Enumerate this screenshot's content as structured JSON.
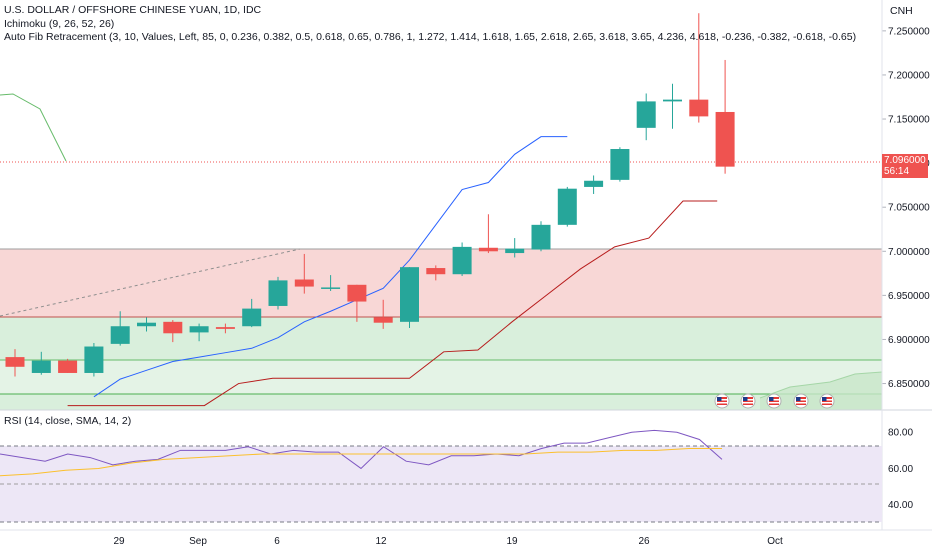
{
  "legend": {
    "symbol": "U.S. DOLLAR / OFFSHORE CHINESE YUAN, 1D, IDC",
    "ichimoku": "Ichimoku (9, 26, 52, 26)",
    "fib": "Auto Fib Retracement (3, 10, Values, Left, 85, 0, 0.236, 0.382, 0.5, 0.618, 0.65, 0.786, 1, 1.272, 1.414, 1.618, 1.65, 2.618, 2.65, 3.618, 3.65, 4.236, 4.618, -0.236, -0.382, -0.618, -0.65)",
    "rsi": "RSI (14, close, SMA, 14, 2)"
  },
  "currency": "CNH",
  "last_price": {
    "value": "7.096000",
    "countdown": "56:14"
  },
  "colors": {
    "up": "#26a69a",
    "down": "#ef5350",
    "tenkan": "#2962ff",
    "kijun": "#b71c1c",
    "rsi": "#7e57c2",
    "rsi_ma": "#fbc02d",
    "rsi_bg": "#ede7f6",
    "fib_red": "#f8d7d6",
    "fib_green": "#d9efdc",
    "cloud": "#a5d6a7"
  },
  "price_axis": [
    "7.250000",
    "7.200000",
    "7.150000",
    "7.100000",
    "7.050000",
    "7.000000",
    "6.950000",
    "6.900000",
    "6.850000"
  ],
  "rsi_axis": [
    "80.00",
    "60.00",
    "40.00"
  ],
  "time_axis": [
    "29",
    "Sep",
    "6",
    "12",
    "19",
    "26",
    "Oct"
  ],
  "event_icons": [
    "us-flag-icon",
    "us-flag-icon",
    "us-flag-icon",
    "us-flag-icon",
    "us-flag-icon"
  ],
  "chart_data": {
    "type": "candlestick",
    "candles": [
      {
        "o": 6.88,
        "h": 6.889,
        "l": 6.858,
        "c": 6.869
      },
      {
        "o": 6.862,
        "h": 6.886,
        "l": 6.86,
        "c": 6.876
      },
      {
        "o": 6.876,
        "h": 6.878,
        "l": 6.862,
        "c": 6.862
      },
      {
        "o": 6.862,
        "h": 6.896,
        "l": 6.858,
        "c": 6.892
      },
      {
        "o": 6.895,
        "h": 6.932,
        "l": 6.893,
        "c": 6.915
      },
      {
        "o": 6.915,
        "h": 6.925,
        "l": 6.909,
        "c": 6.919
      },
      {
        "o": 6.92,
        "h": 6.922,
        "l": 6.897,
        "c": 6.907
      },
      {
        "o": 6.908,
        "h": 6.918,
        "l": 6.898,
        "c": 6.915
      },
      {
        "o": 6.914,
        "h": 6.918,
        "l": 6.907,
        "c": 6.912
      },
      {
        "o": 6.915,
        "h": 6.946,
        "l": 6.914,
        "c": 6.935
      },
      {
        "o": 6.938,
        "h": 6.971,
        "l": 6.934,
        "c": 6.967
      },
      {
        "o": 6.968,
        "h": 6.997,
        "l": 6.952,
        "c": 6.96
      },
      {
        "o": 6.958,
        "h": 6.973,
        "l": 6.955,
        "c": 6.959
      },
      {
        "o": 6.962,
        "h": 6.962,
        "l": 6.92,
        "c": 6.943
      },
      {
        "o": 6.925,
        "h": 6.945,
        "l": 6.912,
        "c": 6.919
      },
      {
        "o": 6.92,
        "h": 6.982,
        "l": 6.913,
        "c": 6.982
      },
      {
        "o": 6.981,
        "h": 6.984,
        "l": 6.967,
        "c": 6.974
      },
      {
        "o": 6.974,
        "h": 7.01,
        "l": 6.972,
        "c": 7.005
      },
      {
        "o": 7.004,
        "h": 7.042,
        "l": 6.998,
        "c": 7.0
      },
      {
        "o": 6.998,
        "h": 7.015,
        "l": 6.993,
        "c": 7.003
      },
      {
        "o": 7.002,
        "h": 7.034,
        "l": 7.0,
        "c": 7.03
      },
      {
        "o": 7.03,
        "h": 7.073,
        "l": 7.028,
        "c": 7.071
      },
      {
        "o": 7.073,
        "h": 7.086,
        "l": 7.065,
        "c": 7.08
      },
      {
        "o": 7.081,
        "h": 7.118,
        "l": 7.079,
        "c": 7.116
      },
      {
        "o": 7.14,
        "h": 7.179,
        "l": 7.126,
        "c": 7.17
      },
      {
        "o": 7.17,
        "h": 7.19,
        "l": 7.139,
        "c": 7.172
      },
      {
        "o": 7.172,
        "h": 7.27,
        "l": 7.146,
        "c": 7.153
      },
      {
        "o": 7.158,
        "h": 7.217,
        "l": 7.088,
        "c": 7.096
      }
    ],
    "tenkan": [
      6.835,
      6.855,
      6.865,
      6.875,
      6.88,
      6.885,
      6.89,
      6.902,
      6.92,
      6.932,
      6.945,
      6.958,
      6.99,
      7.03,
      7.07,
      7.078,
      7.11,
      7.13,
      7.13
    ],
    "kijun": [
      6.825,
      6.825,
      6.825,
      6.825,
      6.825,
      6.85,
      6.856,
      6.856,
      6.856,
      6.856,
      6.856,
      6.886,
      6.888,
      6.92,
      6.95,
      6.98,
      7.005,
      7.015,
      7.057,
      7.057
    ],
    "chikou": [
      7.172,
      7.153,
      7.096
    ],
    "fib_levels": [
      6.999,
      6.921,
      6.872,
      6.834
    ],
    "rsi": [
      68,
      66,
      64,
      68,
      66,
      62,
      64,
      65,
      70,
      70,
      70,
      72,
      68,
      70,
      69,
      69,
      60,
      72,
      64,
      62,
      67,
      67,
      68,
      67,
      71,
      74,
      74,
      77,
      80,
      81,
      80,
      76,
      65
    ],
    "rsi_ma": [
      56,
      57,
      59,
      60,
      63,
      65,
      66,
      67,
      68,
      68,
      68,
      68,
      68,
      68,
      68,
      68,
      68,
      69,
      69,
      70,
      70,
      71,
      71
    ],
    "ylim": [
      6.82,
      7.285
    ],
    "rsi_ylim": [
      26,
      84
    ]
  }
}
